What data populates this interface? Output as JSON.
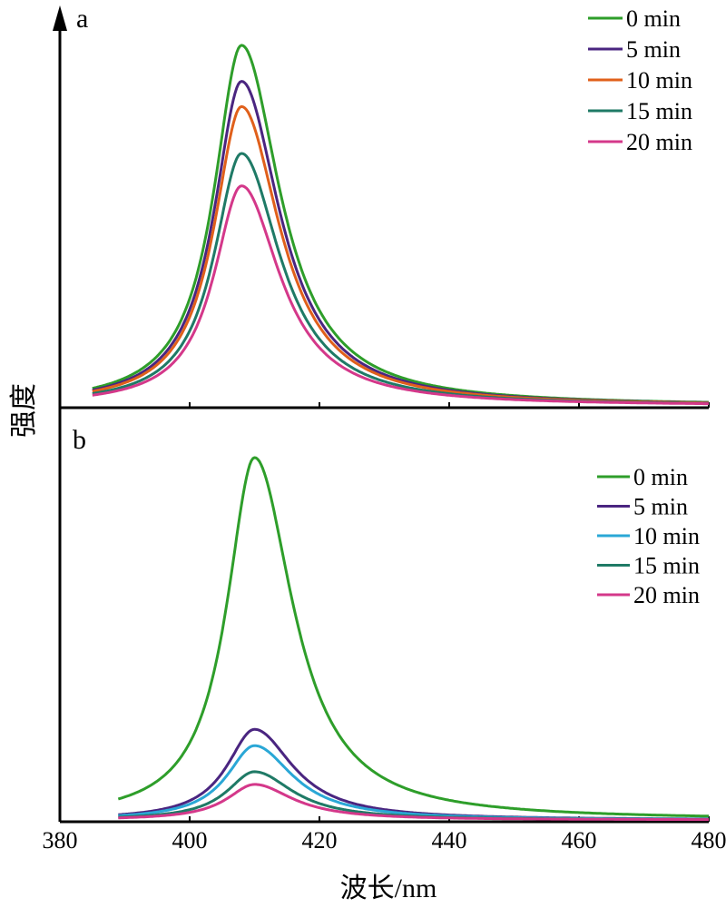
{
  "chart_data": [
    {
      "type": "line",
      "panel_label": "a",
      "xlabel": "波长/nm",
      "ylabel": "强度",
      "xlim": [
        380,
        480
      ],
      "ylim": [
        0,
        1.05
      ],
      "grid": false,
      "legend_position": "top-right",
      "peak_wavelength": 408,
      "series": [
        {
          "name": "0 min",
          "color": "#2e9e2a",
          "peak": 1.0
        },
        {
          "name": "5 min",
          "color": "#4a2580",
          "peak": 0.9
        },
        {
          "name": "10 min",
          "color": "#e0601b",
          "peak": 0.83
        },
        {
          "name": "15 min",
          "color": "#1f7a66",
          "peak": 0.7
        },
        {
          "name": "20 min",
          "color": "#d4388a",
          "peak": 0.61
        }
      ]
    },
    {
      "type": "line",
      "panel_label": "b",
      "xlabel": "波长/nm",
      "ylabel": "强度",
      "xlim": [
        380,
        480
      ],
      "ylim": [
        0,
        1.05
      ],
      "grid": false,
      "legend_position": "top-right",
      "peak_wavelength": 410,
      "series": [
        {
          "name": "0 min",
          "color": "#2e9e2a",
          "peak": 1.0
        },
        {
          "name": "5 min",
          "color": "#4a2580",
          "peak": 0.25
        },
        {
          "name": "10 min",
          "color": "#2aa7d6",
          "peak": 0.205
        },
        {
          "name": "15 min",
          "color": "#1f7a66",
          "peak": 0.133
        },
        {
          "name": "20 min",
          "color": "#d4388a",
          "peak": 0.098
        }
      ]
    }
  ],
  "x_ticks": [
    380,
    400,
    420,
    440,
    460,
    480
  ],
  "axis_titles": {
    "x": "波长/nm",
    "y": "强度"
  }
}
